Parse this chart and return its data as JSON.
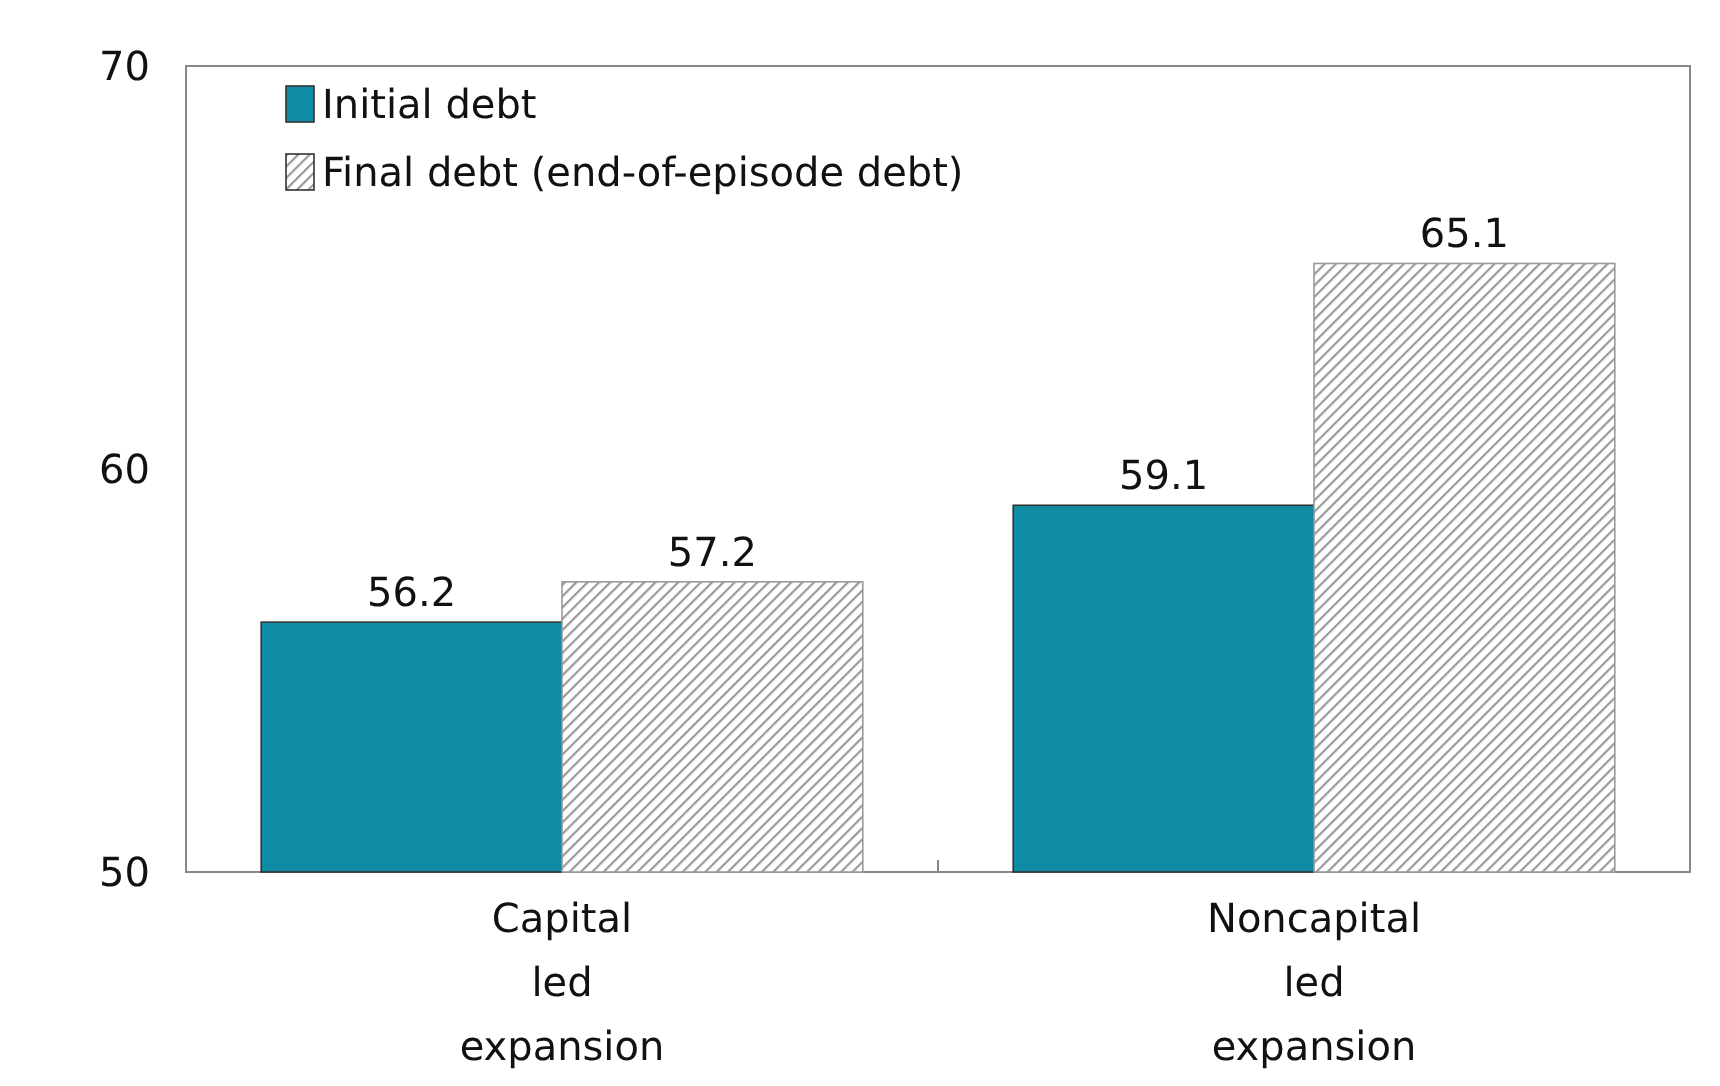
{
  "chart_data": {
    "type": "bar",
    "categories": [
      "Capital led expansion",
      "Noncapital led expansion"
    ],
    "series": [
      {
        "name": "Initial debt",
        "color": "#0f8ca3",
        "values": [
          56.2,
          59.1
        ]
      },
      {
        "name": "Final debt (end-of-episode debt)",
        "color": "#9a9a9a",
        "values": [
          57.2,
          65.1
        ]
      }
    ],
    "ylim": [
      50,
      70
    ],
    "yticks": [
      50,
      60,
      70
    ],
    "data_labels": true,
    "legend": "top left",
    "grid": false
  }
}
